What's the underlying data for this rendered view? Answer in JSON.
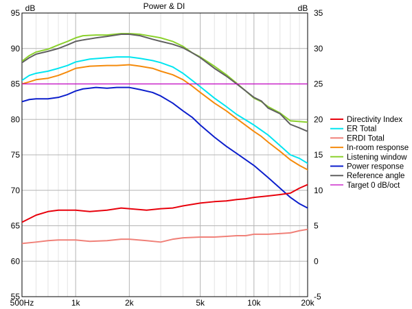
{
  "chart_data": {
    "type": "line",
    "title": "Power & DI",
    "left_unit": "dB",
    "right_unit": "dB",
    "x_scale": "log",
    "xlim": [
      500,
      20000
    ],
    "ylim_left": [
      55,
      95
    ],
    "ylim_right": [
      -5,
      35
    ],
    "grid": true,
    "legend_position": "right",
    "x_ticks": [
      {
        "value": 500,
        "label": "500Hz"
      },
      {
        "value": 1000,
        "label": "1k"
      },
      {
        "value": 2000,
        "label": "2k"
      },
      {
        "value": 5000,
        "label": "5k"
      },
      {
        "value": 10000,
        "label": "10k"
      },
      {
        "value": 20000,
        "label": "20k"
      }
    ],
    "y_ticks_left": [
      "55",
      "60",
      "65",
      "70",
      "75",
      "80",
      "85",
      "90",
      "95"
    ],
    "y_ticks_right": [
      "-5",
      "0",
      "5",
      "10",
      "15",
      "20",
      "25",
      "30",
      "35"
    ],
    "series": [
      {
        "name": "Directivity Index",
        "color": "#e8000b",
        "axis": "right",
        "points": [
          [
            500,
            5.5
          ],
          [
            600,
            6.5
          ],
          [
            700,
            7
          ],
          [
            800,
            7.2
          ],
          [
            1000,
            7.2
          ],
          [
            1200,
            7
          ],
          [
            1500,
            7.2
          ],
          [
            1800,
            7.5
          ],
          [
            2000,
            7.4
          ],
          [
            2500,
            7.2
          ],
          [
            3000,
            7.4
          ],
          [
            3500,
            7.5
          ],
          [
            4000,
            7.8
          ],
          [
            5000,
            8.2
          ],
          [
            6000,
            8.4
          ],
          [
            7000,
            8.5
          ],
          [
            8000,
            8.7
          ],
          [
            9000,
            8.8
          ],
          [
            10000,
            9
          ],
          [
            12000,
            9.2
          ],
          [
            14000,
            9.4
          ],
          [
            16000,
            9.6
          ],
          [
            18000,
            10.3
          ],
          [
            20000,
            10.8
          ]
        ]
      },
      {
        "name": "ER Total",
        "color": "#00e5f0",
        "points": [
          [
            500,
            85.5
          ],
          [
            550,
            86.2
          ],
          [
            600,
            86.5
          ],
          [
            700,
            86.8
          ],
          [
            800,
            87.2
          ],
          [
            900,
            87.6
          ],
          [
            1000,
            88.1
          ],
          [
            1200,
            88.5
          ],
          [
            1500,
            88.7
          ],
          [
            1700,
            88.8
          ],
          [
            2000,
            88.8
          ],
          [
            2300,
            88.6
          ],
          [
            2700,
            88.3
          ],
          [
            3000,
            88
          ],
          [
            3500,
            87.4
          ],
          [
            4000,
            86.5
          ],
          [
            4500,
            85.5
          ],
          [
            5000,
            84.6
          ],
          [
            6000,
            83
          ],
          [
            7000,
            81.8
          ],
          [
            8000,
            80.7
          ],
          [
            10000,
            79.2
          ],
          [
            12000,
            77.8
          ],
          [
            14000,
            76.3
          ],
          [
            16000,
            75
          ],
          [
            18000,
            74.5
          ],
          [
            20000,
            73.8
          ]
        ]
      },
      {
        "name": "ERDI Total",
        "color": "#f08078",
        "axis": "right",
        "points": [
          [
            500,
            2.5
          ],
          [
            600,
            2.7
          ],
          [
            700,
            2.9
          ],
          [
            800,
            3
          ],
          [
            1000,
            3
          ],
          [
            1200,
            2.8
          ],
          [
            1500,
            2.9
          ],
          [
            1800,
            3.1
          ],
          [
            2000,
            3.1
          ],
          [
            2500,
            2.9
          ],
          [
            3000,
            2.7
          ],
          [
            3500,
            3.1
          ],
          [
            4000,
            3.3
          ],
          [
            5000,
            3.4
          ],
          [
            6000,
            3.4
          ],
          [
            7000,
            3.5
          ],
          [
            8000,
            3.6
          ],
          [
            9000,
            3.6
          ],
          [
            10000,
            3.8
          ],
          [
            12000,
            3.8
          ],
          [
            14000,
            3.9
          ],
          [
            16000,
            4
          ],
          [
            18000,
            4.3
          ],
          [
            20000,
            4.5
          ]
        ]
      },
      {
        "name": "In-room response",
        "color": "#f58a0a",
        "points": [
          [
            500,
            85
          ],
          [
            550,
            85.3
          ],
          [
            600,
            85.6
          ],
          [
            700,
            85.8
          ],
          [
            800,
            86.2
          ],
          [
            900,
            86.7
          ],
          [
            1000,
            87.2
          ],
          [
            1200,
            87.5
          ],
          [
            1500,
            87.6
          ],
          [
            1700,
            87.6
          ],
          [
            2000,
            87.7
          ],
          [
            2300,
            87.5
          ],
          [
            2700,
            87.2
          ],
          [
            3000,
            86.8
          ],
          [
            3500,
            86.3
          ],
          [
            4000,
            85.6
          ],
          [
            4500,
            84.7
          ],
          [
            5000,
            83.8
          ],
          [
            6000,
            82.3
          ],
          [
            7000,
            81.2
          ],
          [
            8000,
            80.1
          ],
          [
            10000,
            78.3
          ],
          [
            11000,
            77.6
          ],
          [
            12000,
            76.8
          ],
          [
            14000,
            75.5
          ],
          [
            16000,
            74.3
          ],
          [
            18000,
            73.5
          ],
          [
            20000,
            72.9
          ]
        ]
      },
      {
        "name": "Listening window",
        "color": "#8bd12c",
        "points": [
          [
            500,
            88.2
          ],
          [
            550,
            89
          ],
          [
            600,
            89.5
          ],
          [
            700,
            89.9
          ],
          [
            800,
            90.5
          ],
          [
            900,
            91
          ],
          [
            1000,
            91.5
          ],
          [
            1100,
            91.8
          ],
          [
            1300,
            91.9
          ],
          [
            1500,
            91.9
          ],
          [
            1800,
            92.1
          ],
          [
            2000,
            92.1
          ],
          [
            2300,
            92
          ],
          [
            2700,
            91.7
          ],
          [
            3000,
            91.5
          ],
          [
            3500,
            91
          ],
          [
            4000,
            90.3
          ],
          [
            4500,
            89.4
          ],
          [
            5000,
            88.8
          ],
          [
            6000,
            87.5
          ],
          [
            7000,
            86.3
          ],
          [
            8000,
            85.1
          ],
          [
            9000,
            84
          ],
          [
            10000,
            83
          ],
          [
            11000,
            82.5
          ],
          [
            12000,
            81.8
          ],
          [
            14000,
            80.9
          ],
          [
            16000,
            79.8
          ],
          [
            18000,
            79.7
          ],
          [
            20000,
            79.6
          ]
        ]
      },
      {
        "name": "Power response",
        "color": "#0b1ecc",
        "points": [
          [
            500,
            82.5
          ],
          [
            550,
            82.8
          ],
          [
            600,
            82.9
          ],
          [
            700,
            82.9
          ],
          [
            800,
            83.1
          ],
          [
            900,
            83.5
          ],
          [
            1000,
            84
          ],
          [
            1100,
            84.3
          ],
          [
            1300,
            84.5
          ],
          [
            1500,
            84.4
          ],
          [
            1700,
            84.5
          ],
          [
            2000,
            84.5
          ],
          [
            2300,
            84.2
          ],
          [
            2700,
            83.8
          ],
          [
            3000,
            83.3
          ],
          [
            3500,
            82.3
          ],
          [
            4000,
            81.2
          ],
          [
            4500,
            80.3
          ],
          [
            5000,
            79.2
          ],
          [
            6000,
            77.5
          ],
          [
            7000,
            76.2
          ],
          [
            8000,
            75.2
          ],
          [
            10000,
            73.5
          ],
          [
            12000,
            71.8
          ],
          [
            14000,
            70.3
          ],
          [
            16000,
            69
          ],
          [
            18000,
            68.1
          ],
          [
            20000,
            67.5
          ]
        ]
      },
      {
        "name": "Reference angle",
        "color": "#606060",
        "points": [
          [
            500,
            88
          ],
          [
            550,
            88.7
          ],
          [
            600,
            89.2
          ],
          [
            700,
            89.6
          ],
          [
            800,
            90
          ],
          [
            900,
            90.5
          ],
          [
            1000,
            91
          ],
          [
            1100,
            91.2
          ],
          [
            1300,
            91.5
          ],
          [
            1500,
            91.7
          ],
          [
            1800,
            92
          ],
          [
            2000,
            92
          ],
          [
            2300,
            91.8
          ],
          [
            2700,
            91.3
          ],
          [
            3000,
            91
          ],
          [
            3500,
            90.6
          ],
          [
            4000,
            90.1
          ],
          [
            4500,
            89.4
          ],
          [
            5000,
            88.7
          ],
          [
            6000,
            87.2
          ],
          [
            7000,
            86.1
          ],
          [
            8000,
            85
          ],
          [
            9000,
            84
          ],
          [
            10000,
            83.1
          ],
          [
            11000,
            82.6
          ],
          [
            12000,
            81.6
          ],
          [
            14000,
            80.8
          ],
          [
            16000,
            79.3
          ],
          [
            18000,
            78.8
          ],
          [
            20000,
            78.3
          ]
        ]
      },
      {
        "name": "Target 0 dB/oct",
        "color": "#c000c0",
        "points": [
          [
            500,
            85
          ],
          [
            20000,
            85
          ]
        ]
      }
    ]
  }
}
